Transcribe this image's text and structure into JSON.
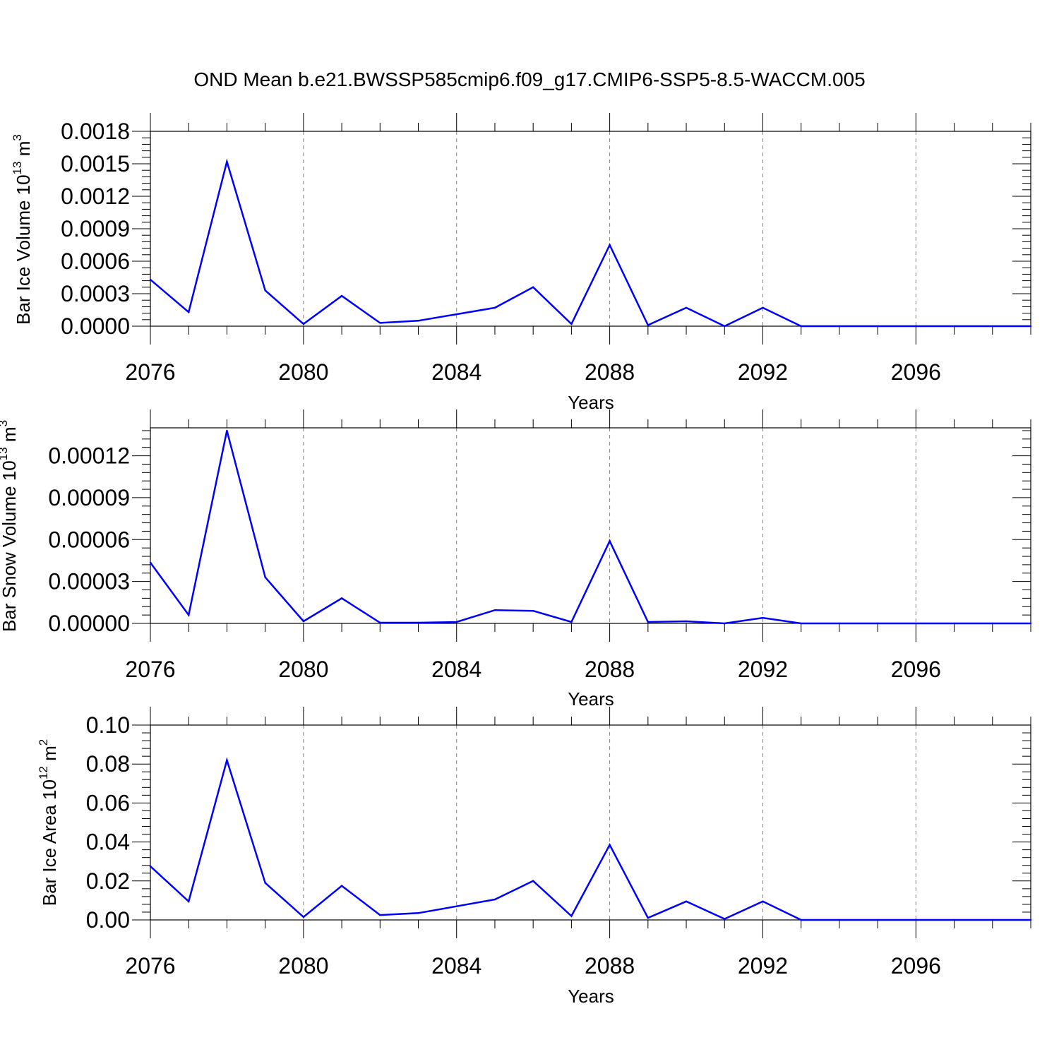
{
  "title": "OND Mean b.e21.BWSSP585cmip6.f09_g17.CMIP6-SSP5-8.5-WACCM.005",
  "colors": {
    "line": "#0000ff",
    "axis": "#000000",
    "grid": "#808080"
  },
  "chart_data": [
    {
      "type": "line",
      "ylabel_text": "Bar Ice Volume 10",
      "ylabel_exp": "13",
      "ylabel_unit": " m",
      "ylabel_unit_exp": "3",
      "xlabel": "Years",
      "xlim": [
        2076,
        2099
      ],
      "ylim": [
        0,
        0.0018
      ],
      "yticks": [
        0,
        0.0003,
        0.0006,
        0.0009,
        0.0012,
        0.0015,
        0.0018
      ],
      "ytick_labels": [
        "0.0000",
        "0.0003",
        "0.0006",
        "0.0009",
        "0.0012",
        "0.0015",
        "0.0018"
      ],
      "xticks": [
        2076,
        2080,
        2084,
        2088,
        2092,
        2096
      ],
      "xtick_labels": [
        "2076",
        "2080",
        "2084",
        "2088",
        "2092",
        "2096"
      ],
      "x": [
        2076,
        2077,
        2078,
        2079,
        2080,
        2081,
        2082,
        2083,
        2084,
        2085,
        2086,
        2087,
        2088,
        2089,
        2090,
        2091,
        2092,
        2093,
        2094,
        2095,
        2096,
        2097,
        2098,
        2099
      ],
      "values": [
        0.00043,
        0.00013,
        0.00152,
        0.00033,
        2e-05,
        0.00028,
        3e-05,
        5e-05,
        0.00011,
        0.00017,
        0.00036,
        2e-05,
        0.00075,
        1e-05,
        0.00017,
        0.0,
        0.00017,
        0.0,
        0.0,
        0.0,
        0.0,
        0.0,
        0.0,
        0.0
      ]
    },
    {
      "type": "line",
      "ylabel_text": "Bar Snow Volume 10",
      "ylabel_exp": "13",
      "ylabel_unit": " m",
      "ylabel_unit_exp": "3",
      "xlabel": "Years",
      "xlim": [
        2076,
        2099
      ],
      "ylim": [
        0,
        0.00014
      ],
      "yticks": [
        0,
        3e-05,
        6e-05,
        9e-05,
        0.00012
      ],
      "ytick_labels": [
        "0.00000",
        "0.00003",
        "0.00006",
        "0.00009",
        "0.00012"
      ],
      "xticks": [
        2076,
        2080,
        2084,
        2088,
        2092,
        2096
      ],
      "xtick_labels": [
        "2076",
        "2080",
        "2084",
        "2088",
        "2092",
        "2096"
      ],
      "x": [
        2076,
        2077,
        2078,
        2079,
        2080,
        2081,
        2082,
        2083,
        2084,
        2085,
        2086,
        2087,
        2088,
        2089,
        2090,
        2091,
        2092,
        2093,
        2094,
        2095,
        2096,
        2097,
        2098,
        2099
      ],
      "values": [
        4.35e-05,
        6e-06,
        0.000138,
        3.3e-05,
        1.5e-06,
        1.8e-05,
        5e-07,
        5e-07,
        1e-06,
        9.5e-06,
        9e-06,
        1e-06,
        5.9e-05,
        1e-06,
        1.5e-06,
        0.0,
        4e-06,
        0.0,
        0.0,
        0.0,
        0.0,
        0.0,
        0.0,
        0.0
      ]
    },
    {
      "type": "line",
      "ylabel_text": "Bar Ice Area 10",
      "ylabel_exp": "12",
      "ylabel_unit": " m",
      "ylabel_unit_exp": "2",
      "xlabel": "Years",
      "xlim": [
        2076,
        2099
      ],
      "ylim": [
        0,
        0.1
      ],
      "yticks": [
        0,
        0.02,
        0.04,
        0.06,
        0.08,
        0.1
      ],
      "ytick_labels": [
        "0.00",
        "0.02",
        "0.04",
        "0.06",
        "0.08",
        "0.10"
      ],
      "xticks": [
        2076,
        2080,
        2084,
        2088,
        2092,
        2096
      ],
      "xtick_labels": [
        "2076",
        "2080",
        "2084",
        "2088",
        "2092",
        "2096"
      ],
      "x": [
        2076,
        2077,
        2078,
        2079,
        2080,
        2081,
        2082,
        2083,
        2084,
        2085,
        2086,
        2087,
        2088,
        2089,
        2090,
        2091,
        2092,
        2093,
        2094,
        2095,
        2096,
        2097,
        2098,
        2099
      ],
      "values": [
        0.0275,
        0.0095,
        0.082,
        0.019,
        0.0015,
        0.0175,
        0.0025,
        0.0035,
        0.007,
        0.0105,
        0.02,
        0.002,
        0.0385,
        0.001,
        0.0095,
        0.0005,
        0.0095,
        0.0,
        0.0,
        0.0,
        0.0,
        0.0,
        0.0,
        0.0
      ]
    }
  ]
}
